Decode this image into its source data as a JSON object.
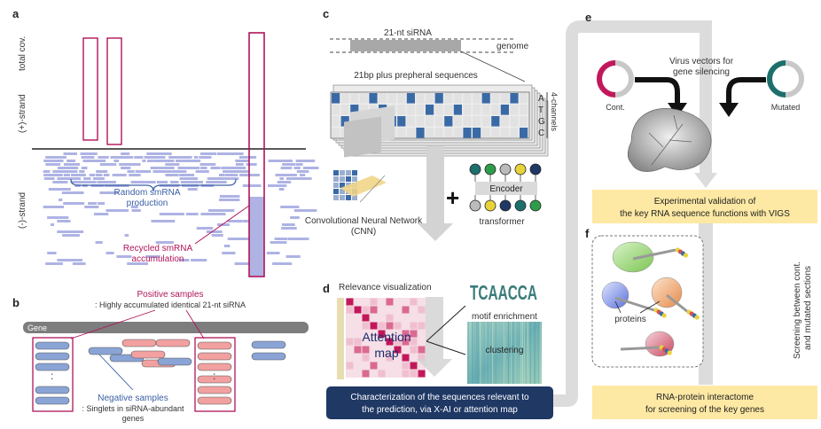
{
  "panels": {
    "a": {
      "label": "a",
      "y_labels": {
        "total": "total cov.",
        "plus": "(+)-strand",
        "minus": "(-)-strand"
      },
      "random": [
        "Random smRNA",
        "production"
      ],
      "recycled": [
        "Recycled smRNA",
        "accumulation"
      ]
    },
    "b": {
      "label": "b",
      "positive_title": "Positive samples",
      "positive_sub": ": Highly accumulated identical 21-nt siRNA",
      "gene": "Gene",
      "ellipsis": ":",
      "negative_title": "Negative samples",
      "negative_sub1": ": Singlets in siRNA-abundant",
      "negative_sub2": "genes"
    },
    "c": {
      "label": "c",
      "sirna": "21-nt siRNA",
      "genome": "genome",
      "peripheral": "21bp plus prepheral sequences",
      "bases": [
        "A",
        "T",
        "G",
        "C"
      ],
      "channels": "4-channels",
      "cnn": [
        "Convolutional  Neural  Network",
        "(CNN)"
      ],
      "plus": "+",
      "encoder": "Encoder",
      "transformer": "transformer"
    },
    "d": {
      "label": "d",
      "relevance": "Relevance visualization",
      "attention": [
        "Attention",
        "map"
      ],
      "motif_logo": "TCAACCA",
      "motif": "motif enrichment",
      "clustering": "clustering",
      "bottom": [
        "Characterization of the sequences relevant to",
        "the prediction, via X-AI or attention map"
      ]
    },
    "e": {
      "label": "e",
      "vigs": [
        "Virus vectors for",
        "gene silencing"
      ],
      "cont": "Cont.",
      "mutated": "Mutated",
      "box": [
        "Experimental validation  of",
        "the key RNA sequence functions with VIGS"
      ]
    },
    "f": {
      "label": "f",
      "proteins": "proteins",
      "box": [
        "RNA-protein  interactome",
        "for screening of the key genes"
      ],
      "side": [
        "Screening between cont.",
        "and mutated sections"
      ]
    }
  },
  "colors": {
    "magenta": "#b0145a",
    "lavender": "#aeb3e4",
    "navy": "#1f3864",
    "yellow": "#fde9a4",
    "arrow_gray": "#d3d3d3",
    "teal": "#1d6f6c",
    "blue_cell": "#3a6aa6",
    "neg_blue": "#8aa4d6",
    "pos_pink": "#f2a0a0"
  }
}
